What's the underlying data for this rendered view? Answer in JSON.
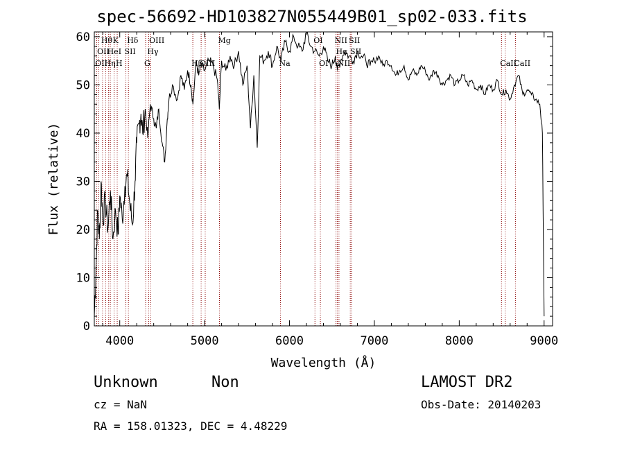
{
  "chart_data": {
    "type": "line",
    "title": "spec-56692-HD103827N055449B01_sp02-033.fits",
    "xlabel": "Wavelength (Å)",
    "ylabel": "Flux (relative)",
    "xlim": [
      3700,
      9100
    ],
    "ylim": [
      0,
      61
    ],
    "xticks": [
      4000,
      5000,
      6000,
      7000,
      8000,
      9000
    ],
    "yticks": [
      0,
      10,
      20,
      30,
      40,
      50,
      60
    ],
    "grid": false,
    "line_color": "#000000",
    "marker_color": "#8b0000",
    "series": [
      {
        "x": [
          3700,
          3720,
          3740,
          3760,
          3780,
          3800,
          3830,
          3860,
          3890,
          3920,
          3950,
          3980,
          4000,
          4030,
          4060,
          4090,
          4120,
          4150,
          4180,
          4200,
          4230,
          4250,
          4270,
          4300,
          4330,
          4360,
          4400,
          4430,
          4460,
          4500,
          4530,
          4560,
          4580,
          4620,
          4680,
          4720,
          4760,
          4800,
          4840,
          4862,
          4900,
          4930,
          4960,
          5000,
          5050,
          5100,
          5150,
          5173,
          5200,
          5250,
          5300,
          5350,
          5400,
          5450,
          5500,
          5540,
          5580,
          5620,
          5650,
          5700,
          5750,
          5800,
          5850,
          5900,
          5950,
          6000,
          6050,
          6100,
          6150,
          6200,
          6250,
          6300,
          6350,
          6400,
          6450,
          6500,
          6540,
          6563,
          6600,
          6650,
          6700,
          6750,
          6800,
          6850,
          6900,
          6950,
          7000,
          7050,
          7100,
          7150,
          7200,
          7250,
          7300,
          7350,
          7400,
          7450,
          7500,
          7550,
          7600,
          7650,
          7700,
          7750,
          7800,
          7850,
          7900,
          7950,
          8000,
          8050,
          8100,
          8150,
          8200,
          8250,
          8300,
          8350,
          8400,
          8450,
          8500,
          8550,
          8600,
          8650,
          8700,
          8750,
          8800,
          8850,
          8900,
          8950,
          8980,
          9000
        ],
        "y": [
          2,
          12,
          24,
          18,
          30,
          22,
          26,
          20,
          28,
          18,
          24,
          19,
          27,
          22,
          29,
          31,
          25,
          21,
          30,
          38,
          42,
          44,
          40,
          45,
          39,
          46,
          43,
          41,
          45,
          38,
          34,
          43,
          47,
          50,
          47,
          52,
          49,
          53,
          50,
          46,
          55,
          52,
          54,
          53,
          55,
          54,
          51,
          45,
          55,
          53,
          56,
          54,
          57,
          50,
          54,
          41,
          52,
          37,
          56,
          55,
          57,
          54,
          58,
          55,
          59,
          57,
          60,
          58,
          57,
          61,
          58,
          57,
          56,
          58,
          55,
          54,
          56,
          53,
          55,
          57,
          56,
          55,
          57,
          56,
          55,
          54,
          55,
          56,
          54,
          55,
          54,
          52,
          53,
          54,
          51,
          53,
          52,
          54,
          53,
          51,
          53,
          52,
          50,
          51,
          52,
          50,
          51,
          52,
          50,
          51,
          49,
          50,
          48,
          50,
          49,
          51,
          48,
          49,
          47,
          50,
          52,
          48,
          49,
          48,
          47,
          46,
          40,
          2
        ]
      }
    ],
    "lines": [
      {
        "x": 3727,
        "label": "OII",
        "row": 3
      },
      {
        "x": 3750,
        "label": "OII",
        "row": 2
      },
      {
        "x": 3797,
        "label": "Hθ",
        "row": 1
      },
      {
        "x": 3835,
        "label": "Hη",
        "row": 3
      },
      {
        "x": 3869,
        "label": "HeI",
        "row": 2
      },
      {
        "x": 3889,
        "label": "",
        "row": 0
      },
      {
        "x": 3934,
        "label": "K",
        "row": 1
      },
      {
        "x": 3970,
        "label": "H",
        "row": 3
      },
      {
        "x": 4072,
        "label": "SII",
        "row": 2
      },
      {
        "x": 4102,
        "label": "Hδ",
        "row": 1
      },
      {
        "x": 4305,
        "label": "G",
        "row": 3
      },
      {
        "x": 4340,
        "label": "Hγ",
        "row": 2
      },
      {
        "x": 4363,
        "label": "OIII",
        "row": 1
      },
      {
        "x": 4861,
        "label": "Hβ",
        "row": 4
      },
      {
        "x": 4959,
        "label": "OIII",
        "row": 3
      },
      {
        "x": 5007,
        "label": "",
        "row": 0
      },
      {
        "x": 5175,
        "label": "Mg",
        "row": 1
      },
      {
        "x": 5893,
        "label": "Na",
        "row": 4
      },
      {
        "x": 6300,
        "label": "OI",
        "row": 1
      },
      {
        "x": 6364,
        "label": "OI",
        "row": 3
      },
      {
        "x": 6548,
        "label": "NII",
        "row": 1
      },
      {
        "x": 6563,
        "label": "Hα",
        "row": 2
      },
      {
        "x": 6583,
        "label": "NII",
        "row": 4
      },
      {
        "x": 6716,
        "label": "SII",
        "row": 1
      },
      {
        "x": 6731,
        "label": "SII",
        "row": 2
      },
      {
        "x": 8498,
        "label": "CaII",
        "row": 4
      },
      {
        "x": 8542,
        "label": "",
        "row": 0
      },
      {
        "x": 8662,
        "label": "CaII",
        "row": 3
      }
    ]
  },
  "info": {
    "class": "Unknown",
    "subclass": "Non",
    "survey": "LAMOST DR2",
    "cz": "cz = NaN",
    "obs_date": "Obs-Date: 20140203",
    "radec": "RA = 158.01323, DEC =    4.48229"
  }
}
